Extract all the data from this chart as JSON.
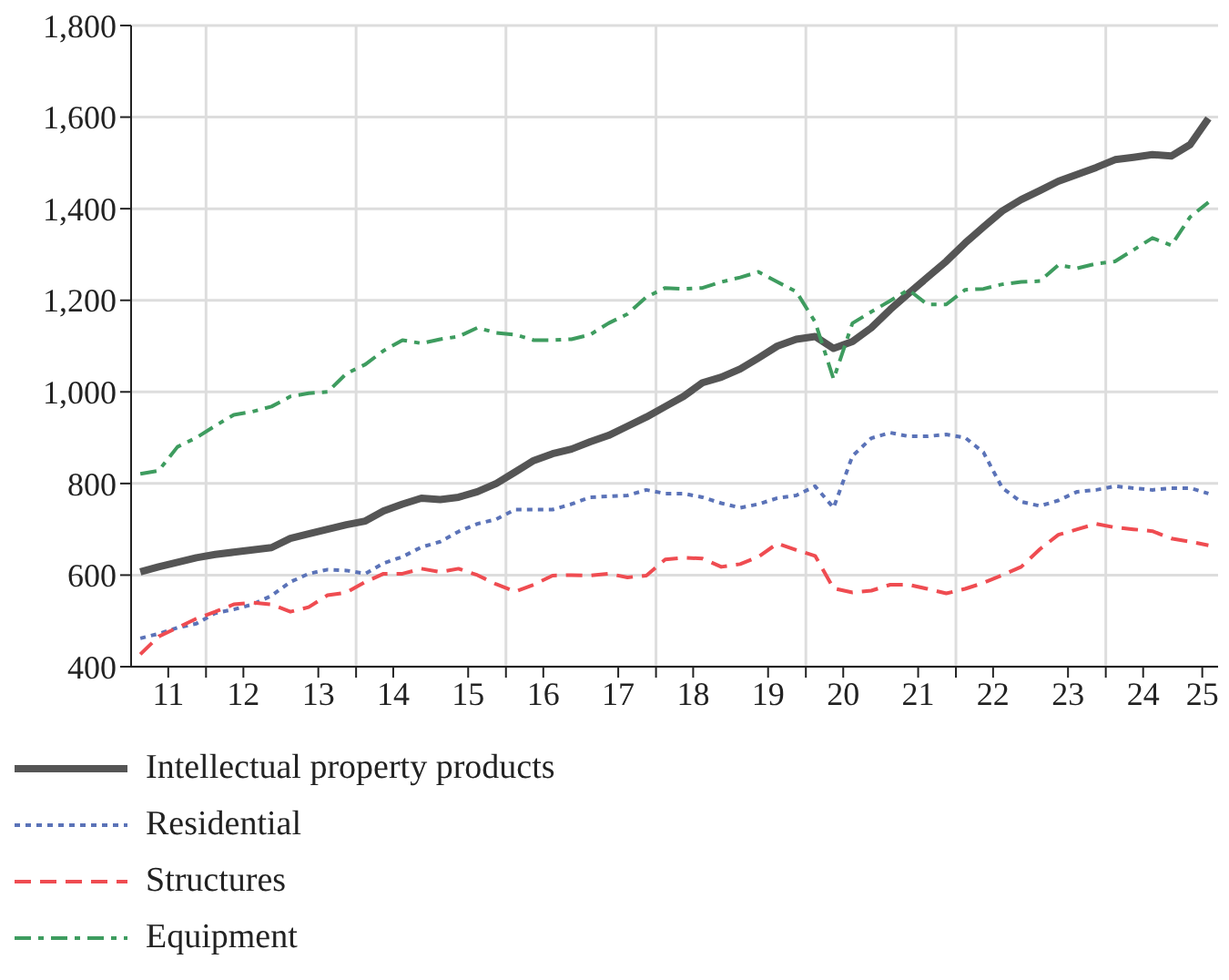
{
  "chart_data": {
    "type": "line",
    "x": [
      "2011-02-15",
      "2011-05-15",
      "2011-08-15",
      "2011-11-15",
      "2012-02-15",
      "2012-05-15",
      "2012-08-15",
      "2012-11-15",
      "2013-02-15",
      "2013-05-15",
      "2013-08-15",
      "2013-11-15",
      "2014-02-15",
      "2014-05-15",
      "2014-08-15",
      "2014-11-15",
      "2015-02-15",
      "2015-05-15",
      "2015-08-15",
      "2015-11-15",
      "2016-02-15",
      "2016-05-15",
      "2016-08-15",
      "2016-11-15",
      "2017-02-15",
      "2017-05-15",
      "2017-08-15",
      "2017-11-15",
      "2018-02-15",
      "2018-05-15",
      "2018-08-15",
      "2018-11-15",
      "2019-02-15",
      "2019-05-15",
      "2019-08-15",
      "2019-11-15",
      "2020-02-15",
      "2020-05-15",
      "2020-08-15",
      "2020-11-15",
      "2021-02-15",
      "2021-05-15",
      "2021-08-15",
      "2021-11-15",
      "2022-02-15",
      "2022-05-15",
      "2022-08-15",
      "2022-11-15",
      "2023-02-15",
      "2023-05-15",
      "2023-08-15",
      "2023-11-15",
      "2024-02-15",
      "2024-05-15",
      "2024-08-15",
      "2024-11-15",
      "2025-02-15",
      "2025-05-15"
    ],
    "series": [
      {
        "name": "Intellectual property products",
        "color": "#555555",
        "line_style": "solid",
        "values": [
          607,
          618,
          628,
          638,
          645,
          650,
          655,
          660,
          680,
          690,
          700,
          710,
          718,
          740,
          755,
          768,
          765,
          770,
          782,
          800,
          825,
          850,
          865,
          875,
          891,
          905,
          925,
          945,
          968,
          990,
          1020,
          1032,
          1050,
          1074,
          1100,
          1115,
          1121,
          1095,
          1110,
          1140,
          1180,
          1215,
          1250,
          1285,
          1325,
          1360,
          1395,
          1420,
          1440,
          1460,
          1475,
          1490,
          1507,
          1512,
          1518,
          1515,
          1540,
          1597
        ]
      },
      {
        "name": "Residential",
        "color": "#5b73b8",
        "line_style": "dotted",
        "values": [
          462,
          472,
          485,
          494,
          517,
          525,
          536,
          555,
          585,
          603,
          612,
          610,
          603,
          626,
          640,
          661,
          673,
          695,
          712,
          722,
          743,
          743,
          743,
          755,
          770,
          772,
          774,
          786,
          778,
          778,
          770,
          757,
          747,
          755,
          768,
          774,
          794,
          747,
          860,
          899,
          911,
          903,
          903,
          907,
          900,
          868,
          790,
          760,
          751,
          763,
          782,
          786,
          794,
          790,
          786,
          790,
          790,
          778
        ]
      },
      {
        "name": "Structures",
        "color": "#ef4c51",
        "line_style": "dashed",
        "values": [
          427,
          466,
          485,
          505,
          520,
          536,
          540,
          536,
          520,
          530,
          556,
          562,
          585,
          603,
          603,
          614,
          607,
          614,
          600,
          580,
          564,
          579,
          599,
          600,
          599,
          603,
          595,
          599,
          634,
          638,
          636,
          618,
          624,
          640,
          669,
          655,
          642,
          571,
          562,
          566,
          579,
          579,
          570,
          560,
          570,
          583,
          600,
          618,
          657,
          688,
          700,
          712,
          704,
          700,
          696,
          680,
          673,
          665
        ]
      },
      {
        "name": "Equipment",
        "color": "#3e9c5f",
        "line_style": "dashdot",
        "values": [
          821,
          828,
          880,
          900,
          926,
          950,
          957,
          968,
          990,
          997,
          1000,
          1040,
          1060,
          1090,
          1113,
          1106,
          1115,
          1121,
          1140,
          1129,
          1125,
          1113,
          1113,
          1115,
          1125,
          1150,
          1170,
          1207,
          1227,
          1225,
          1227,
          1240,
          1250,
          1262,
          1240,
          1219,
          1153,
          1028,
          1150,
          1175,
          1199,
          1223,
          1191,
          1191,
          1223,
          1225,
          1235,
          1240,
          1242,
          1277,
          1270,
          1280,
          1285,
          1310,
          1336,
          1320,
          1382,
          1414
        ]
      }
    ],
    "xlim": [
      "2011-01-01",
      "2025-07-01"
    ],
    "xticks": [
      {
        "value": "2011-07-01",
        "label": "11"
      },
      {
        "value": "2012-01-01",
        "label": null
      },
      {
        "value": "2012-07-01",
        "label": "12"
      },
      {
        "value": "2013-07-01",
        "label": "13"
      },
      {
        "value": "2014-01-01",
        "label": null
      },
      {
        "value": "2014-07-01",
        "label": "14"
      },
      {
        "value": "2015-07-01",
        "label": "15"
      },
      {
        "value": "2016-01-01",
        "label": null
      },
      {
        "value": "2016-07-01",
        "label": "16"
      },
      {
        "value": "2017-07-01",
        "label": "17"
      },
      {
        "value": "2018-01-01",
        "label": null
      },
      {
        "value": "2018-07-01",
        "label": "18"
      },
      {
        "value": "2019-07-01",
        "label": "19"
      },
      {
        "value": "2020-01-01",
        "label": null
      },
      {
        "value": "2020-07-01",
        "label": "20"
      },
      {
        "value": "2021-07-01",
        "label": "21"
      },
      {
        "value": "2022-01-01",
        "label": null
      },
      {
        "value": "2022-07-01",
        "label": "22"
      },
      {
        "value": "2023-07-01",
        "label": "23"
      },
      {
        "value": "2024-01-01",
        "label": null
      },
      {
        "value": "2024-07-01",
        "label": "24"
      },
      {
        "value": "2025-04-15",
        "label": "25"
      }
    ],
    "ylim": [
      400,
      1800
    ],
    "yticks": [
      {
        "value": 400,
        "label": "400"
      },
      {
        "value": 600,
        "label": "600"
      },
      {
        "value": 800,
        "label": "800"
      },
      {
        "value": 1000,
        "label": "1,000"
      },
      {
        "value": 1200,
        "label": "1,200"
      },
      {
        "value": 1400,
        "label": "1,400"
      },
      {
        "value": 1600,
        "label": "1,600"
      },
      {
        "value": 1800,
        "label": "1,800"
      }
    ],
    "grid": true,
    "legend": "bottom",
    "marker": "none"
  }
}
